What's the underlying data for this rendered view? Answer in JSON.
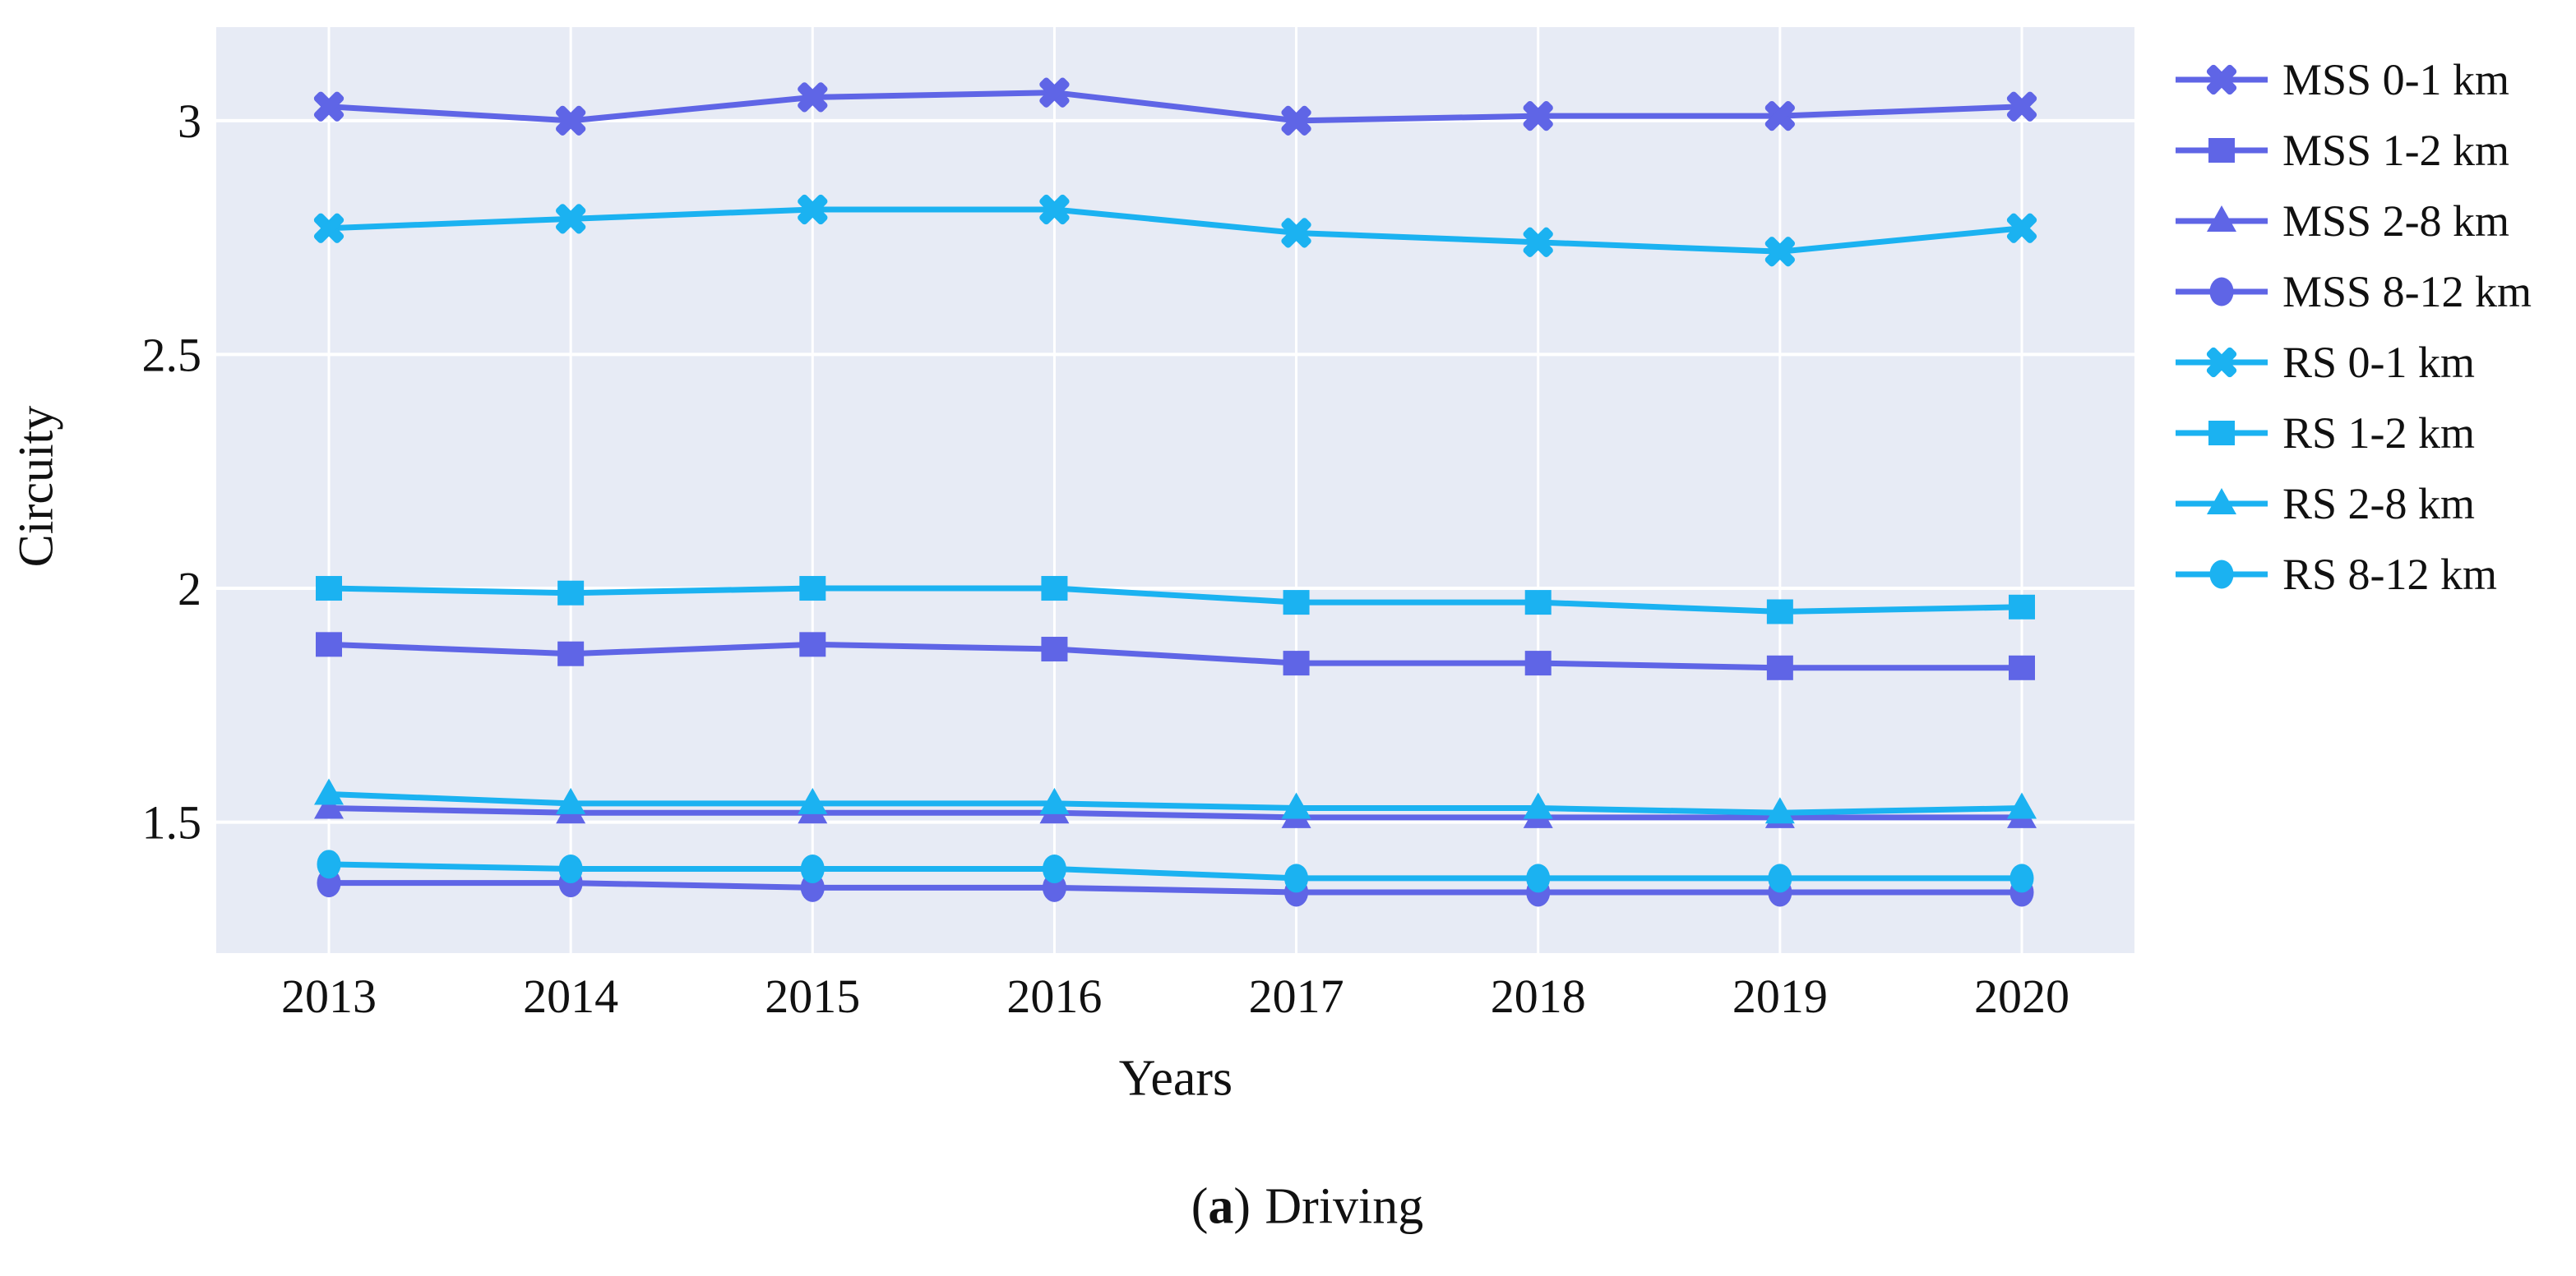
{
  "figure": {
    "ylabel": "Circuity",
    "xlabel": "Years",
    "caption": {
      "open_paren": "(",
      "letter": "a",
      "close_paren": ")",
      "text": "Driving"
    }
  },
  "chart_data": {
    "type": "line",
    "title": "",
    "xlabel": "Years",
    "ylabel": "Circuity",
    "x": [
      2013,
      2014,
      2015,
      2016,
      2017,
      2018,
      2019,
      2020
    ],
    "ylim": [
      1.22,
      3.2
    ],
    "yticks": [
      1.5,
      2,
      2.5,
      3
    ],
    "ytick_labels": [
      "1.5",
      "2",
      "2.5",
      "3"
    ],
    "grid": true,
    "legend_position": "right-outside",
    "colors": {
      "plot_bg": "#e7ebf5",
      "grid_color": "#ffffff",
      "mss": "#5f65e6",
      "rs": "#1bb2f1",
      "text": "#111111"
    },
    "series": [
      {
        "name": "MSS 0-1 km",
        "color": "#5f65e6",
        "marker": "x",
        "values": [
          3.03,
          3.0,
          3.05,
          3.06,
          3.0,
          3.01,
          3.01,
          3.03
        ]
      },
      {
        "name": "MSS 1-2 km",
        "color": "#5f65e6",
        "marker": "square",
        "values": [
          1.88,
          1.86,
          1.88,
          1.87,
          1.84,
          1.84,
          1.83,
          1.83
        ]
      },
      {
        "name": "MSS 2-8 km",
        "color": "#5f65e6",
        "marker": "triangle",
        "values": [
          1.53,
          1.52,
          1.52,
          1.52,
          1.51,
          1.51,
          1.51,
          1.51
        ]
      },
      {
        "name": "MSS 8-12 km",
        "color": "#5f65e6",
        "marker": "circle",
        "values": [
          1.37,
          1.37,
          1.36,
          1.36,
          1.35,
          1.35,
          1.35,
          1.35
        ]
      },
      {
        "name": "RS 0-1 km",
        "color": "#1bb2f1",
        "marker": "x",
        "values": [
          2.77,
          2.79,
          2.81,
          2.81,
          2.76,
          2.74,
          2.72,
          2.77
        ]
      },
      {
        "name": "RS 1-2 km",
        "color": "#1bb2f1",
        "marker": "square",
        "values": [
          2.0,
          1.99,
          2.0,
          2.0,
          1.97,
          1.97,
          1.95,
          1.96
        ]
      },
      {
        "name": "RS 2-8 km",
        "color": "#1bb2f1",
        "marker": "triangle",
        "values": [
          1.56,
          1.54,
          1.54,
          1.54,
          1.53,
          1.53,
          1.52,
          1.53
        ]
      },
      {
        "name": "RS 8-12 km",
        "color": "#1bb2f1",
        "marker": "circle",
        "values": [
          1.41,
          1.4,
          1.4,
          1.4,
          1.38,
          1.38,
          1.38,
          1.38
        ]
      }
    ]
  }
}
